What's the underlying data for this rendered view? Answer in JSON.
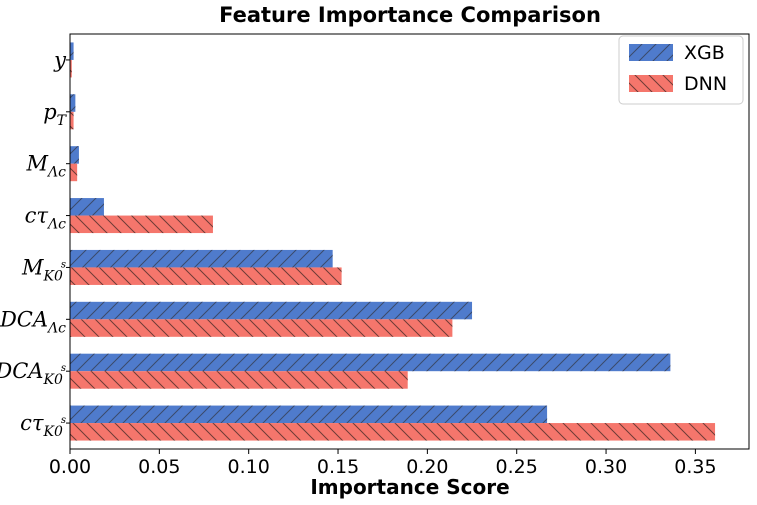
{
  "chart_data": {
    "type": "bar",
    "orientation": "horizontal",
    "title": "Feature Importance Comparison",
    "xlabel": "Importance Score",
    "ylabel": "",
    "xlim": [
      0.0,
      0.38
    ],
    "xticks": [
      "0.00",
      "0.05",
      "0.10",
      "0.15",
      "0.20",
      "0.25",
      "0.30",
      "0.35"
    ],
    "categories": [
      {
        "base": "y",
        "sub": "",
        "sup": ""
      },
      {
        "base": "p",
        "sub": "T",
        "sup": ""
      },
      {
        "base": "M",
        "sub": "Λc",
        "sup": ""
      },
      {
        "base": "cτ",
        "sub": "Λc",
        "sup": ""
      },
      {
        "base": "M",
        "sub": "K0",
        "sup": "s"
      },
      {
        "base": "DCA",
        "sub": "Λc",
        "sup": ""
      },
      {
        "base": "DCA",
        "sub": "K0",
        "sup": "s"
      },
      {
        "base": "cτ",
        "sub": "K0",
        "sup": "s"
      }
    ],
    "series": [
      {
        "name": "XGB",
        "color": "#4f7bcc",
        "hatch": "/",
        "values": [
          0.002,
          0.003,
          0.005,
          0.019,
          0.147,
          0.225,
          0.336,
          0.267
        ]
      },
      {
        "name": "DNN",
        "color": "#f5766c",
        "hatch": "\\",
        "values": [
          0.001,
          0.002,
          0.004,
          0.08,
          0.152,
          0.214,
          0.189,
          0.361
        ]
      }
    ],
    "legend": "top-right",
    "grid": false
  }
}
